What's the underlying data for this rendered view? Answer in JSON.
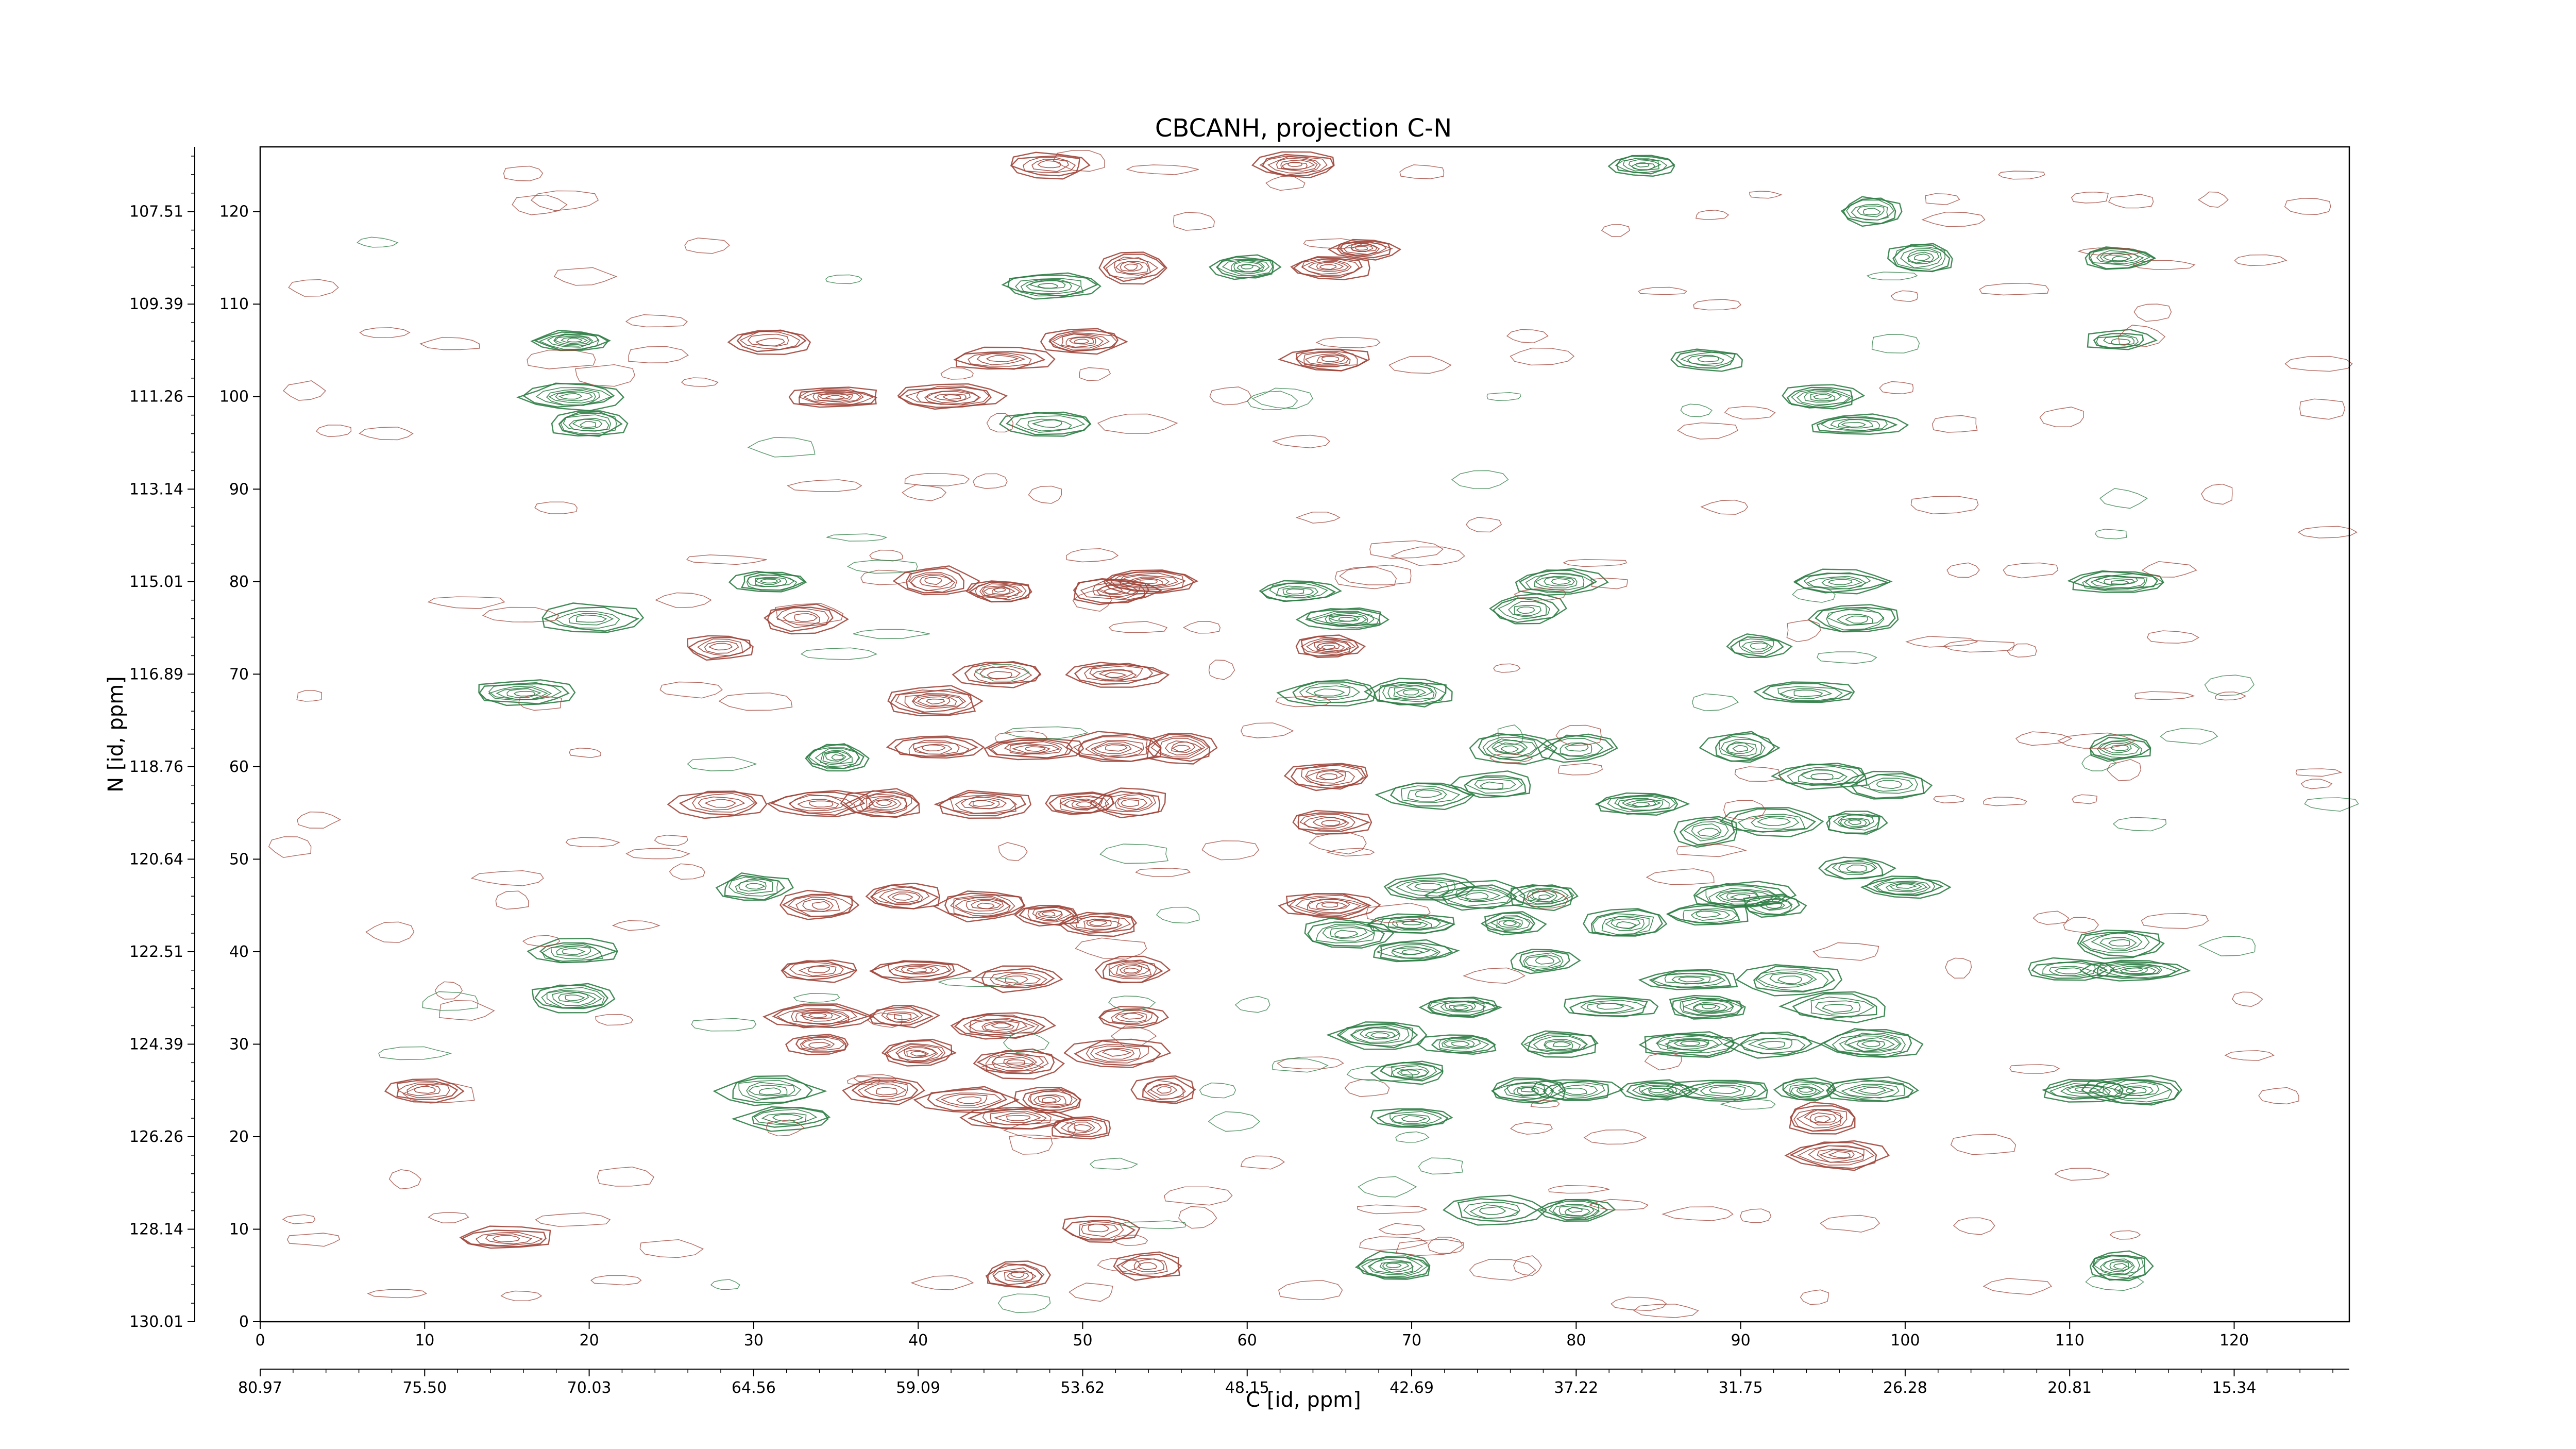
{
  "chart_data": {
    "type": "contour",
    "title": "CBCANH, projection C-N",
    "xlabel": "C [id, ppm]",
    "ylabel": "N [id, ppm]",
    "x_index_ticks": [
      "0",
      "10",
      "20",
      "30",
      "40",
      "50",
      "60",
      "70",
      "80",
      "90",
      "100",
      "110",
      "120"
    ],
    "x_ppm_ticks": [
      "80.97",
      "75.50",
      "70.03",
      "64.56",
      "59.09",
      "53.62",
      "48.15",
      "42.69",
      "37.22",
      "31.75",
      "26.28",
      "20.81",
      "15.34"
    ],
    "y_index_ticks": [
      "0",
      "10",
      "20",
      "30",
      "40",
      "50",
      "60",
      "70",
      "80",
      "90",
      "100",
      "110",
      "120"
    ],
    "y_ppm_ticks": [
      "130.01",
      "128.14",
      "126.26",
      "124.39",
      "122.51",
      "120.64",
      "118.76",
      "116.89",
      "115.01",
      "113.14",
      "111.26",
      "109.39",
      "107.51"
    ],
    "x_index_range": [
      0,
      127
    ],
    "y_index_range": [
      0,
      127
    ],
    "grid": false,
    "colors": {
      "positive": "#a0453a",
      "negative": "#2e7d45"
    },
    "series": [
      {
        "sign": "positive",
        "peaks": [
          [
            48,
            125
          ],
          [
            63,
            125
          ],
          [
            53,
            114
          ],
          [
            65,
            114
          ],
          [
            67,
            116
          ],
          [
            65,
            104
          ],
          [
            31,
            106
          ],
          [
            45,
            104
          ],
          [
            50,
            106
          ],
          [
            42,
            100
          ],
          [
            35,
            100
          ],
          [
            41,
            80
          ],
          [
            45,
            79
          ],
          [
            52,
            79
          ],
          [
            54,
            80
          ],
          [
            33,
            76
          ],
          [
            28,
            73
          ],
          [
            65,
            73
          ],
          [
            41,
            67
          ],
          [
            45,
            70
          ],
          [
            52,
            70
          ],
          [
            41,
            62
          ],
          [
            47,
            62
          ],
          [
            52,
            62
          ],
          [
            56,
            62
          ],
          [
            34,
            56
          ],
          [
            38,
            56
          ],
          [
            44,
            56
          ],
          [
            50,
            56
          ],
          [
            53,
            56
          ],
          [
            28,
            56
          ],
          [
            65,
            59
          ],
          [
            65,
            54
          ],
          [
            34,
            45
          ],
          [
            39,
            46
          ],
          [
            44,
            45
          ],
          [
            48,
            44
          ],
          [
            51,
            43
          ],
          [
            65,
            45
          ],
          [
            34,
            38
          ],
          [
            40,
            38
          ],
          [
            46,
            37
          ],
          [
            53,
            38
          ],
          [
            34,
            33
          ],
          [
            39,
            33
          ],
          [
            45,
            32
          ],
          [
            53,
            33
          ],
          [
            34,
            30
          ],
          [
            40,
            29
          ],
          [
            46,
            28
          ],
          [
            52,
            29
          ],
          [
            38,
            25
          ],
          [
            43,
            24
          ],
          [
            48,
            24
          ],
          [
            55,
            25
          ],
          [
            46,
            22
          ],
          [
            50,
            21
          ],
          [
            46,
            5
          ],
          [
            51,
            10
          ],
          [
            54,
            6
          ],
          [
            95,
            22
          ],
          [
            96,
            18
          ],
          [
            15,
            9
          ],
          [
            10,
            25
          ]
        ]
      },
      {
        "sign": "negative",
        "peaks": [
          [
            84,
            125
          ],
          [
            98,
            120
          ],
          [
            101,
            115
          ],
          [
            113,
            115
          ],
          [
            60,
            114
          ],
          [
            19,
            106
          ],
          [
            48,
            112
          ],
          [
            113,
            106
          ],
          [
            88,
            104
          ],
          [
            95,
            100
          ],
          [
            19,
            100
          ],
          [
            20,
            97
          ],
          [
            97,
            97
          ],
          [
            48,
            97
          ],
          [
            31,
            80
          ],
          [
            63,
            79
          ],
          [
            66,
            76
          ],
          [
            79,
            80
          ],
          [
            96,
            80
          ],
          [
            113,
            80
          ],
          [
            77,
            77
          ],
          [
            97,
            76
          ],
          [
            20,
            76
          ],
          [
            16,
            68
          ],
          [
            65,
            68
          ],
          [
            70,
            68
          ],
          [
            91,
            73
          ],
          [
            94,
            68
          ],
          [
            35,
            61
          ],
          [
            76,
            62
          ],
          [
            80,
            62
          ],
          [
            90,
            62
          ],
          [
            113,
            62
          ],
          [
            71,
            57
          ],
          [
            75,
            58
          ],
          [
            84,
            56
          ],
          [
            95,
            59
          ],
          [
            99,
            58
          ],
          [
            88,
            53
          ],
          [
            92,
            54
          ],
          [
            97,
            54
          ],
          [
            30,
            47
          ],
          [
            71,
            47
          ],
          [
            74,
            46
          ],
          [
            78,
            46
          ],
          [
            90,
            46
          ],
          [
            92,
            45
          ],
          [
            97,
            49
          ],
          [
            100,
            47
          ],
          [
            66,
            42
          ],
          [
            70,
            43
          ],
          [
            76,
            43
          ],
          [
            83,
            43
          ],
          [
            88,
            44
          ],
          [
            19,
            40
          ],
          [
            19,
            35
          ],
          [
            70,
            40
          ],
          [
            78,
            39
          ],
          [
            87,
            37
          ],
          [
            93,
            37
          ],
          [
            113,
            41
          ],
          [
            110,
            38
          ],
          [
            114,
            38
          ],
          [
            73,
            34
          ],
          [
            82,
            34
          ],
          [
            88,
            34
          ],
          [
            96,
            34
          ],
          [
            68,
            31
          ],
          [
            73,
            30
          ],
          [
            79,
            30
          ],
          [
            87,
            30
          ],
          [
            92,
            30
          ],
          [
            98,
            30
          ],
          [
            70,
            27
          ],
          [
            77,
            25
          ],
          [
            80,
            25
          ],
          [
            85,
            25
          ],
          [
            89,
            25
          ],
          [
            94,
            25
          ],
          [
            98,
            25
          ],
          [
            31,
            25
          ],
          [
            111,
            25
          ],
          [
            114,
            25
          ],
          [
            70,
            22
          ],
          [
            32,
            22
          ],
          [
            113,
            6
          ],
          [
            69,
            6
          ],
          [
            75,
            12
          ],
          [
            80,
            12
          ]
        ]
      }
    ]
  }
}
